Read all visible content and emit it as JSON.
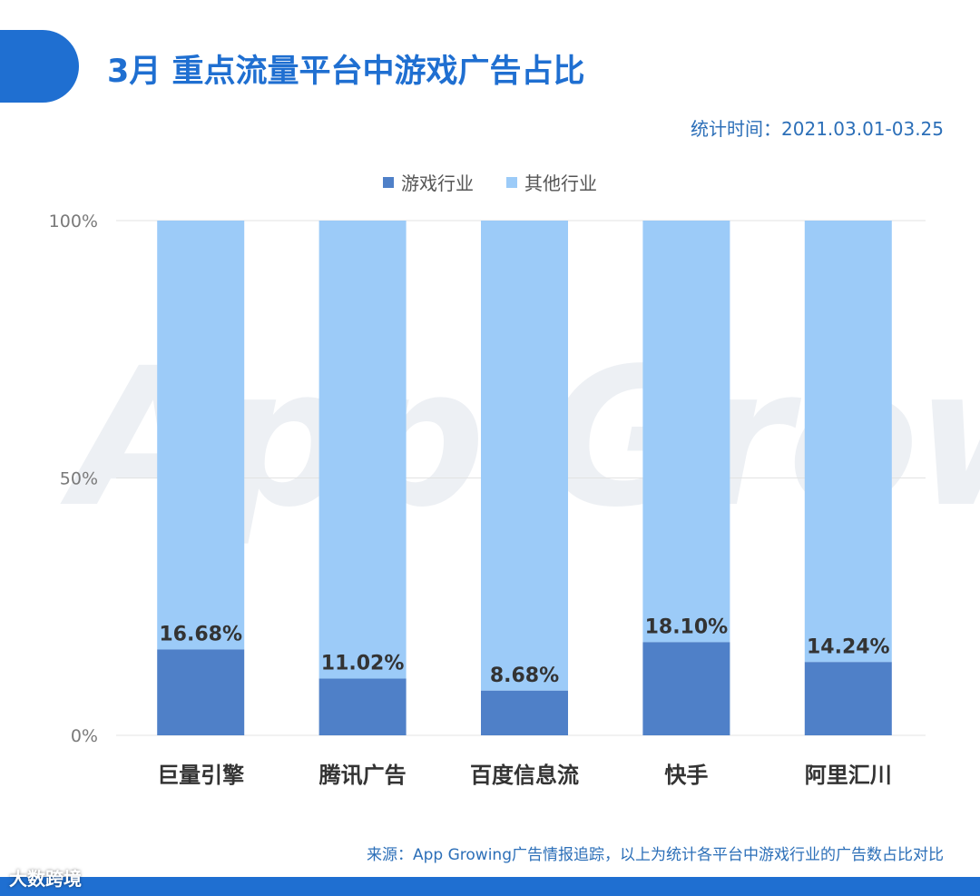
{
  "header": {
    "title": "3月 重点流量平台中游戏广告占比",
    "stat_period": "统计时间：2021.03.01-03.25"
  },
  "colors": {
    "accent": "#1f6fd1",
    "game": "#4f80c8",
    "other": "#9ccbf8"
  },
  "chart_data": {
    "type": "bar",
    "stacked": true,
    "percent": true,
    "categories": [
      "巨量引擎",
      "腾讯广告",
      "百度信息流",
      "快手",
      "阿里汇川"
    ],
    "series": [
      {
        "name": "游戏行业",
        "values": [
          16.68,
          11.02,
          8.68,
          18.1,
          14.24
        ],
        "color": "#4f80c8"
      },
      {
        "name": "其他行业",
        "values": [
          83.32,
          88.98,
          91.32,
          81.9,
          85.76
        ],
        "color": "#9ccbf8"
      }
    ],
    "data_labels": [
      "16.68%",
      "11.02%",
      "8.68%",
      "18.10%",
      "14.24%"
    ],
    "yticks": [
      "0%",
      "50%",
      "100%"
    ],
    "ylim": [
      0,
      100
    ],
    "legend_position": "top"
  },
  "watermark": "App Growing",
  "footer": {
    "source": "来源：App Growing广告情报追踪，以上为统计各平台中游戏行业的广告数占比对比",
    "corner_mark": "大数跨境"
  }
}
